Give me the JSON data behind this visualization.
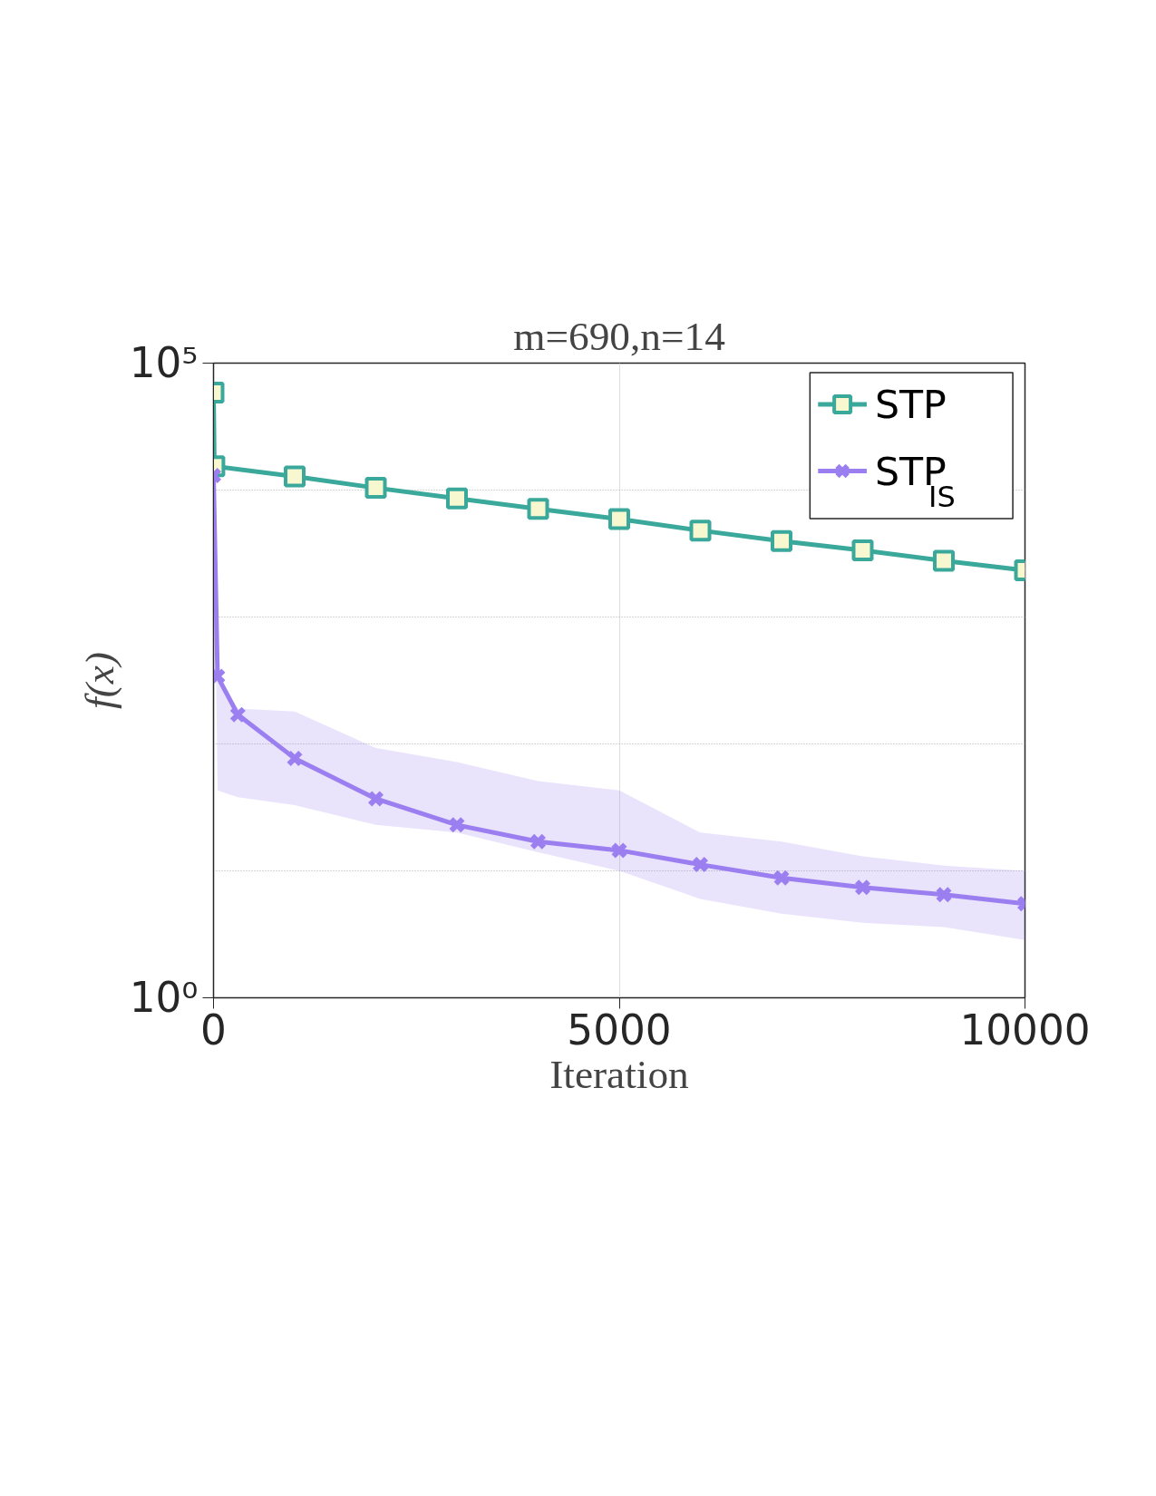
{
  "chart_data": {
    "type": "line",
    "title": "m=690,n=14",
    "xlabel": "Iteration",
    "ylabel": "f(x)",
    "log": "y",
    "grid": true,
    "legend": "top right",
    "line_style": "solid",
    "xlim": [
      0,
      10000
    ],
    "xticks": [
      0,
      5000,
      10000
    ],
    "ylim": [
      1,
      100000
    ],
    "yticks": [
      {
        "value": 1,
        "label": "10⁰"
      },
      {
        "value": 100000,
        "label": "10⁵"
      }
    ],
    "series": [
      {
        "name": "STP",
        "color": "#3aa89a",
        "marker": "square",
        "x": [
          0,
          10,
          1000,
          2000,
          3000,
          4000,
          5000,
          6000,
          7000,
          8000,
          9000,
          10000
        ],
        "values": [
          58700,
          15400,
          12800,
          10400,
          8600,
          7100,
          5900,
          4800,
          3970,
          3350,
          2770,
          2330
        ]
      },
      {
        "name": "STP$_{IS}$",
        "color": "#9b7ff0",
        "marker": "cross",
        "x": [
          0,
          50,
          300,
          1000,
          2000,
          3000,
          4000,
          5000,
          6000,
          7000,
          8000,
          9000,
          10000
        ],
        "values": [
          13000,
          340,
          170,
          77,
          37,
          23,
          17,
          14.5,
          11.2,
          8.8,
          7.4,
          6.5,
          5.5
        ],
        "lower": [
          13000,
          43,
          38,
          33,
          23,
          20,
          14,
          10,
          6.0,
          4.6,
          3.9,
          3.6,
          2.85
        ],
        "upper": [
          13000,
          340,
          190,
          180,
          93,
          72,
          51,
          43,
          20,
          17,
          13,
          11,
          10
        ]
      }
    ]
  }
}
